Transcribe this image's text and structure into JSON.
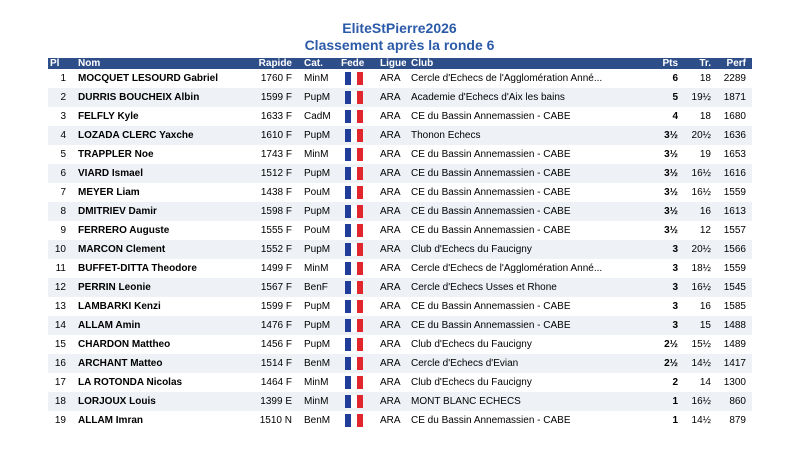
{
  "header": {
    "title": "EliteStPierre2026",
    "subtitle": "Classement après la ronde 6"
  },
  "table": {
    "columns": [
      "Pl",
      "Nom",
      "Rapide",
      "Cat.",
      "Fede",
      "Ligue",
      "Club",
      "Pts",
      "Tr.",
      "Perf"
    ],
    "rows": [
      {
        "pl": 1,
        "nom": "MOCQUET LESOURD Gabriel",
        "rapide": "1760 F",
        "cat": "MinM",
        "ligue": "ARA",
        "club": "Cercle d'Echecs de l'Agglomération Anné...",
        "pts": "6",
        "tr": "18",
        "perf": 2289
      },
      {
        "pl": 2,
        "nom": "DURRIS BOUCHEIX Albin",
        "rapide": "1599 F",
        "cat": "PupM",
        "ligue": "ARA",
        "club": "Academie d'Echecs d'Aix les bains",
        "pts": "5",
        "tr": "19½",
        "perf": 1871
      },
      {
        "pl": 3,
        "nom": "FELFLY Kyle",
        "rapide": "1633 F",
        "cat": "CadM",
        "ligue": "ARA",
        "club": "CE du Bassin Annemassien - CABE",
        "pts": "4",
        "tr": "18",
        "perf": 1680
      },
      {
        "pl": 4,
        "nom": "LOZADA CLERC Yaxche",
        "rapide": "1610 F",
        "cat": "PupM",
        "ligue": "ARA",
        "club": "Thonon Echecs",
        "pts": "3½",
        "tr": "20½",
        "perf": 1636
      },
      {
        "pl": 5,
        "nom": "TRAPPLER Noe",
        "rapide": "1743 F",
        "cat": "MinM",
        "ligue": "ARA",
        "club": "CE du Bassin Annemassien - CABE",
        "pts": "3½",
        "tr": "19",
        "perf": 1653
      },
      {
        "pl": 6,
        "nom": "VIARD Ismael",
        "rapide": "1512 F",
        "cat": "PupM",
        "ligue": "ARA",
        "club": "CE du Bassin Annemassien - CABE",
        "pts": "3½",
        "tr": "16½",
        "perf": 1616
      },
      {
        "pl": 7,
        "nom": "MEYER Liam",
        "rapide": "1438 F",
        "cat": "PouM",
        "ligue": "ARA",
        "club": "CE du Bassin Annemassien - CABE",
        "pts": "3½",
        "tr": "16½",
        "perf": 1559
      },
      {
        "pl": 8,
        "nom": "DMITRIEV Damir",
        "rapide": "1598 F",
        "cat": "PupM",
        "ligue": "ARA",
        "club": "CE du Bassin Annemassien - CABE",
        "pts": "3½",
        "tr": "16",
        "perf": 1613
      },
      {
        "pl": 9,
        "nom": "FERRERO Auguste",
        "rapide": "1555 F",
        "cat": "PouM",
        "ligue": "ARA",
        "club": "CE du Bassin Annemassien - CABE",
        "pts": "3½",
        "tr": "12",
        "perf": 1557
      },
      {
        "pl": 10,
        "nom": "MARCON Clement",
        "rapide": "1552 F",
        "cat": "PupM",
        "ligue": "ARA",
        "club": "Club d'Echecs du Faucigny",
        "pts": "3",
        "tr": "20½",
        "perf": 1566
      },
      {
        "pl": 11,
        "nom": "BUFFET-DITTA Theodore",
        "rapide": "1499 F",
        "cat": "MinM",
        "ligue": "ARA",
        "club": "Cercle d'Echecs de l'Agglomération Anné...",
        "pts": "3",
        "tr": "18½",
        "perf": 1559
      },
      {
        "pl": 12,
        "nom": "PERRIN Leonie",
        "rapide": "1567 F",
        "cat": "BenF",
        "ligue": "ARA",
        "club": "Cercle d'Echecs Usses et Rhone",
        "pts": "3",
        "tr": "16½",
        "perf": 1545
      },
      {
        "pl": 13,
        "nom": "LAMBARKI Kenzi",
        "rapide": "1599 F",
        "cat": "PupM",
        "ligue": "ARA",
        "club": "CE du Bassin Annemassien - CABE",
        "pts": "3",
        "tr": "16",
        "perf": 1585
      },
      {
        "pl": 14,
        "nom": "ALLAM Amin",
        "rapide": "1476 F",
        "cat": "PupM",
        "ligue": "ARA",
        "club": "CE du Bassin Annemassien - CABE",
        "pts": "3",
        "tr": "15",
        "perf": 1488
      },
      {
        "pl": 15,
        "nom": "CHARDON Mattheo",
        "rapide": "1456 F",
        "cat": "PupM",
        "ligue": "ARA",
        "club": "Club d'Echecs du Faucigny",
        "pts": "2½",
        "tr": "15½",
        "perf": 1489
      },
      {
        "pl": 16,
        "nom": "ARCHANT Matteo",
        "rapide": "1514 F",
        "cat": "BenM",
        "ligue": "ARA",
        "club": "Cercle d'Echecs d'Evian",
        "pts": "2½",
        "tr": "14½",
        "perf": 1417
      },
      {
        "pl": 17,
        "nom": "LA ROTONDA Nicolas",
        "rapide": "1464 F",
        "cat": "MinM",
        "ligue": "ARA",
        "club": "Club d'Echecs du Faucigny",
        "pts": "2",
        "tr": "14",
        "perf": 1300
      },
      {
        "pl": 18,
        "nom": "LORJOUX Louis",
        "rapide": "1399 E",
        "cat": "MinM",
        "ligue": "ARA",
        "club": "MONT BLANC ECHECS",
        "pts": "1",
        "tr": "16½",
        "perf": 860
      },
      {
        "pl": 19,
        "nom": "ALLAM Imran",
        "rapide": "1510 N",
        "cat": "BenM",
        "ligue": "ARA",
        "club": "CE du Bassin Annemassien - CABE",
        "pts": "1",
        "tr": "14½",
        "perf": 879
      }
    ]
  }
}
